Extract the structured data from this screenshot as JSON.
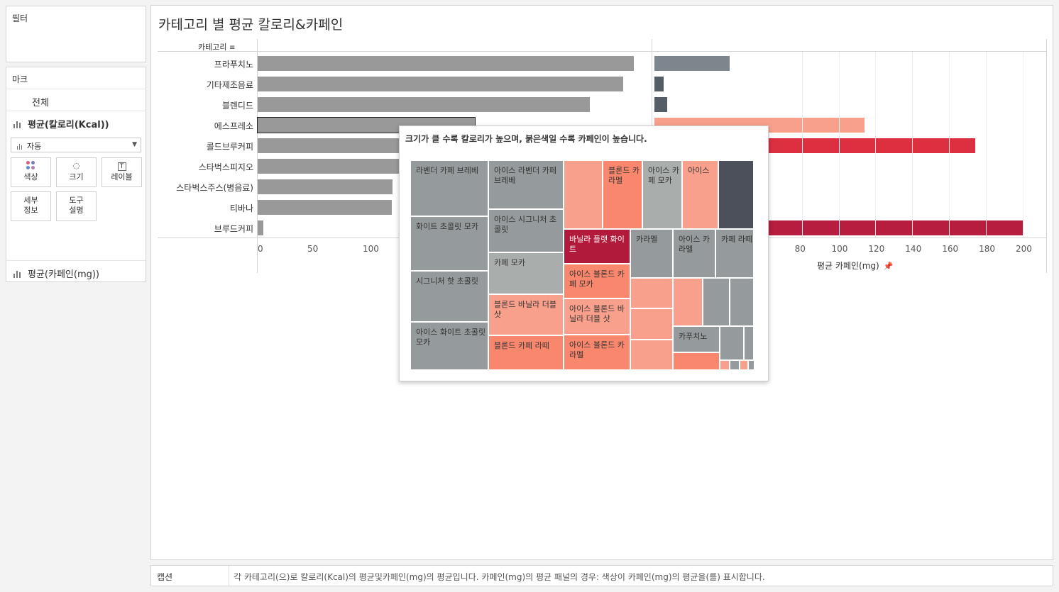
{
  "left": {
    "filters_title": "필터",
    "marks_title": "마크",
    "marks_all": "전체",
    "marks_calorie": "평균(칼로리(Kcal))",
    "mark_type": "자동",
    "buttons": {
      "color": "색상",
      "size": "크기",
      "label": "레이블",
      "detail": "세부\n정보",
      "tooltip": "도구\n설명"
    },
    "marks_caffeine": "평균(카페인(mg))"
  },
  "sheet": {
    "title": "카테고리 별 평균 칼로리&카페인",
    "category_header": "카테고리",
    "x_axis_title": "평균 카페인(mg)"
  },
  "chart_data": [
    {
      "type": "bar",
      "title": "",
      "categories": [
        "프라푸치노",
        "기타제조음료",
        "블렌디드",
        "에스프레소",
        "콜드브루커피",
        "스타벅스피지오",
        "스타벅스주스(병음료)",
        "티바나",
        "브루드커피"
      ],
      "values": [
        340,
        330,
        300,
        196,
        165,
        160,
        122,
        121,
        5
      ],
      "xlabel": "",
      "ylabel": "",
      "ticks_visible": [
        "0",
        "50",
        "100"
      ],
      "bar_color": "#999999"
    },
    {
      "type": "bar",
      "title": "",
      "categories": [
        "프라푸치노",
        "기타제조음료",
        "블렌디드",
        "에스프레소",
        "콜드브루커피",
        "스타벅스피지오",
        "스타벅스주스(병음료)",
        "티바나",
        "브루드커피"
      ],
      "values": [
        41,
        5,
        7,
        114,
        174,
        null,
        null,
        null,
        200
      ],
      "colors": [
        "#7c868c",
        "#555d66",
        "#555d66",
        "#f9a08c",
        "#dc3040",
        "",
        "",
        "",
        "#b71d3e"
      ],
      "xlabel": "평균 카페인(mg)",
      "ticks_visible": [
        "0",
        "80",
        "100",
        "120",
        "140",
        "160",
        "180",
        "200"
      ],
      "xlim": [
        0,
        200
      ]
    }
  ],
  "tooltip": {
    "title": "크기가 클 수록 칼로리가 높으며, 붉은색일 수록 카페인이 높습니다.",
    "cells": [
      {
        "label": "라벤더 카페 브레베"
      },
      {
        "label": "화이트 초콜릿 모카"
      },
      {
        "label": "시그니처 핫 초콜릿"
      },
      {
        "label": "아이스 화이트 초콜릿 모카"
      },
      {
        "label": "아이스 라벤더 카페 브레베"
      },
      {
        "label": "아이스 시그니처 초콜릿"
      },
      {
        "label": "카페 모카"
      },
      {
        "label": "블론드 바닐라 더블 샷"
      },
      {
        "label": "블론드 카페 라떼"
      },
      {
        "label": "블론드 카라멜"
      },
      {
        "label": "아이스 카페 모카"
      },
      {
        "label": "아이스"
      },
      {
        "label": "바닐라 플랫 화이트"
      },
      {
        "label": "아이스 블론드 카페 모카"
      },
      {
        "label": "아이스 블론드 바닐라 더블 샷"
      },
      {
        "label": "아이스 블론드 카라멜"
      },
      {
        "label": "카라멜"
      },
      {
        "label": "아이스 카라멜"
      },
      {
        "label": "카페 라떼"
      },
      {
        "label": "카푸치노"
      }
    ]
  },
  "caption": {
    "label": "캡션",
    "text": "각 카테고리(으)로 칼로리(Kcal)의 평균및카페인(mg)의 평균입니다. 카페인(mg)의 평균 패널의 경우: 색상이 카페인(mg)의 평균을(를) 표시합니다."
  }
}
